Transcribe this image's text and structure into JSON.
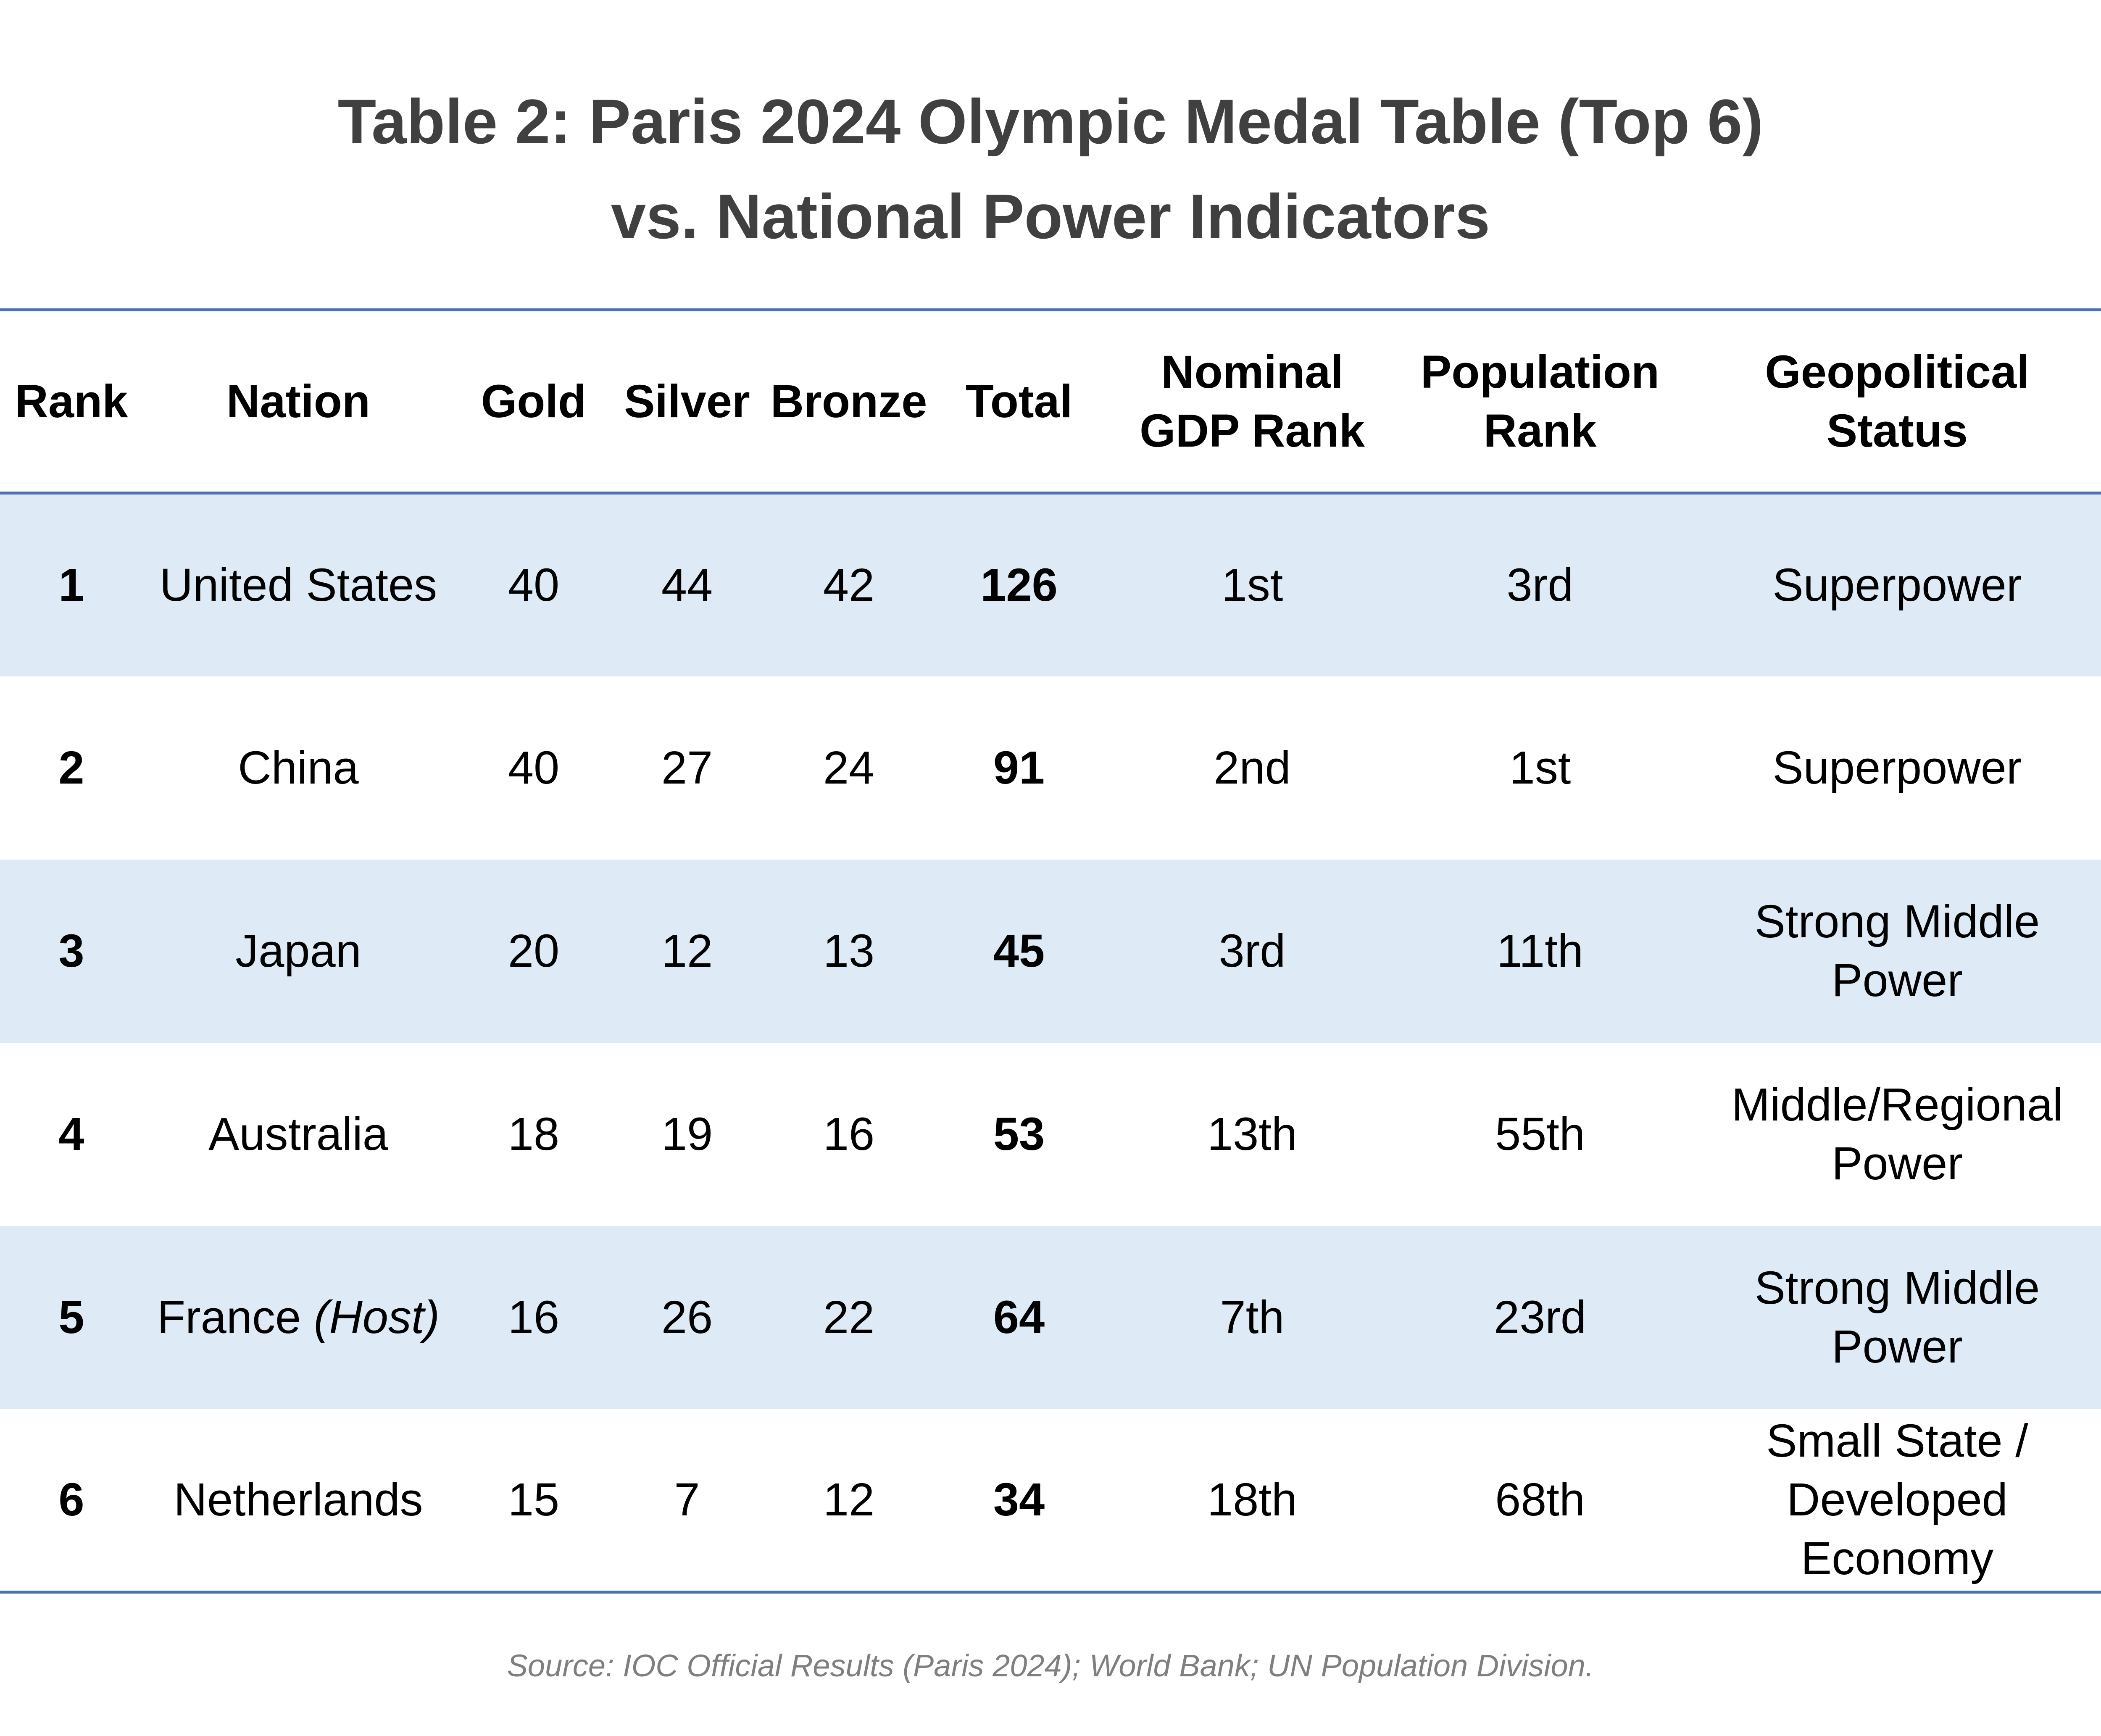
{
  "title": {
    "line1": "Table 2: Paris 2024 Olympic Medal Table (Top 6)",
    "line2": "vs. National Power Indicators"
  },
  "chart_data": {
    "type": "table",
    "columns": [
      [
        "Rank"
      ],
      [
        "Nation"
      ],
      [
        "Gold"
      ],
      [
        "Silver"
      ],
      [
        "Bronze"
      ],
      [
        "Total"
      ],
      [
        "Nominal",
        "GDP Rank"
      ],
      [
        "Population",
        "Rank"
      ],
      [
        "Geopolitical",
        "Status"
      ]
    ],
    "rows": [
      {
        "rank": "1",
        "nation": "United States",
        "note": "",
        "gold": "40",
        "silver": "44",
        "bronze": "42",
        "total": "126",
        "gdp_rank": "1st",
        "pop_rank": "3rd",
        "status": [
          "Superpower"
        ]
      },
      {
        "rank": "2",
        "nation": "China",
        "note": "",
        "gold": "40",
        "silver": "27",
        "bronze": "24",
        "total": "91",
        "gdp_rank": "2nd",
        "pop_rank": "1st",
        "status": [
          "Superpower"
        ]
      },
      {
        "rank": "3",
        "nation": "Japan",
        "note": "",
        "gold": "20",
        "silver": "12",
        "bronze": "13",
        "total": "45",
        "gdp_rank": "3rd",
        "pop_rank": "11th",
        "status": [
          "Strong Middle",
          "Power"
        ]
      },
      {
        "rank": "4",
        "nation": "Australia",
        "note": "",
        "gold": "18",
        "silver": "19",
        "bronze": "16",
        "total": "53",
        "gdp_rank": "13th",
        "pop_rank": "55th",
        "status": [
          "Middle/Regional",
          "Power"
        ]
      },
      {
        "rank": "5",
        "nation": "France",
        "note": "(Host)",
        "gold": "16",
        "silver": "26",
        "bronze": "22",
        "total": "64",
        "gdp_rank": "7th",
        "pop_rank": "23rd",
        "status": [
          "Strong Middle",
          "Power"
        ]
      },
      {
        "rank": "6",
        "nation": "Netherlands",
        "note": "",
        "gold": "15",
        "silver": "7",
        "bronze": "12",
        "total": "34",
        "gdp_rank": "18th",
        "pop_rank": "68th",
        "status": [
          "Small State /",
          "Developed",
          "Economy"
        ]
      }
    ]
  },
  "source": "Source: IOC Official Results (Paris 2024); World Bank; UN Population Division.",
  "colors": {
    "title": "#404040",
    "rule": "#4a72b8",
    "shaded_row": "#deeaf6",
    "source": "#7f7f7f"
  }
}
